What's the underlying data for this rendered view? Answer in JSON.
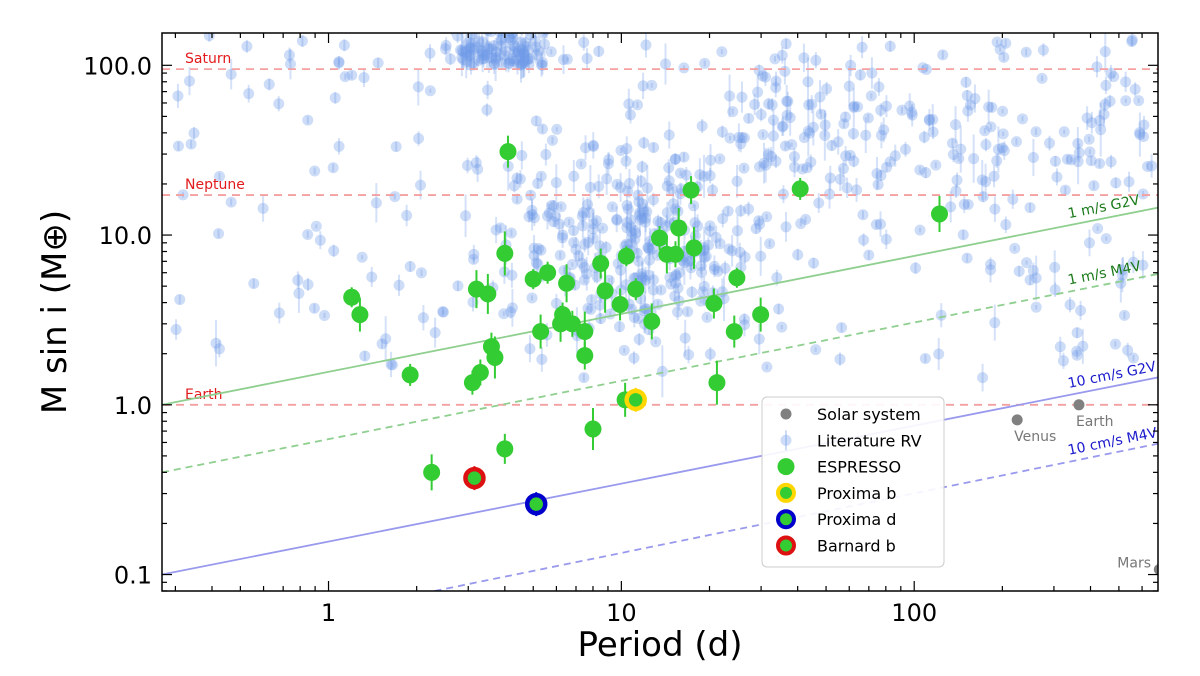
{
  "chart_data": {
    "type": "scatter",
    "xscale": "log",
    "yscale": "log",
    "xlabel": "Period (d)",
    "ylabel": "M sin i (M⊕)",
    "xlim": [
      0.27,
      680
    ],
    "ylim": [
      0.08,
      155
    ],
    "x_ticks": [
      {
        "value": 1,
        "label": "1"
      },
      {
        "value": 10,
        "label": "10"
      },
      {
        "value": 100,
        "label": "100"
      }
    ],
    "y_ticks": [
      {
        "value": 0.1,
        "label": "0.1"
      },
      {
        "value": 1,
        "label": "1.0"
      },
      {
        "value": 10,
        "label": "10.0"
      },
      {
        "value": 100,
        "label": "100.0"
      }
    ],
    "reference_lines": [
      {
        "name": "Saturn",
        "mass": 95
      },
      {
        "name": "Neptune",
        "mass": 17.2
      },
      {
        "name": "Earth",
        "mass": 1.0
      }
    ],
    "detection_limits": [
      {
        "label": "1 m/s G2V",
        "color": "#8fcf8f",
        "dash": false,
        "points": [
          [
            0.27,
            1.0
          ],
          [
            680,
            14.5
          ]
        ],
        "label_period": 300
      },
      {
        "label": "1 m/s M4V",
        "color": "#8fcf8f",
        "dash": true,
        "points": [
          [
            0.27,
            0.4
          ],
          [
            680,
            5.9
          ]
        ],
        "label_period": 300
      },
      {
        "label": "10 cm/s G2V",
        "color": "#9999ee",
        "dash": false,
        "points": [
          [
            0.27,
            0.1
          ],
          [
            680,
            1.45
          ]
        ],
        "label_period": 300
      },
      {
        "label": "10 cm/s M4V",
        "color": "#9999ee",
        "dash": true,
        "points": [
          [
            2.3,
            0.08
          ],
          [
            680,
            0.59
          ]
        ],
        "label_period": 300
      }
    ],
    "literature_rv_cluster": {
      "label": "Literature RV",
      "count": 780,
      "period_range": [
        0.3,
        680
      ],
      "mass_range": [
        0.6,
        150
      ],
      "color": "#6f9ce8"
    },
    "series": [
      {
        "name": "Solar system",
        "color": "#808080",
        "points": [
          {
            "x": 224.7,
            "y": 0.815,
            "label": "Venus"
          },
          {
            "x": 365.25,
            "y": 1.0,
            "label": "Earth"
          },
          {
            "x": 687,
            "y": 0.107,
            "label": "Mars"
          }
        ]
      },
      {
        "name": "ESPRESSO",
        "color": "#33cc33",
        "points": [
          {
            "x": 1.2,
            "y": 4.3
          },
          {
            "x": 1.28,
            "y": 3.4
          },
          {
            "x": 1.9,
            "y": 1.5
          },
          {
            "x": 2.25,
            "y": 0.4
          },
          {
            "x": 3.1,
            "y": 1.35
          },
          {
            "x": 3.2,
            "y": 4.8
          },
          {
            "x": 3.3,
            "y": 1.55
          },
          {
            "x": 3.5,
            "y": 4.5
          },
          {
            "x": 3.6,
            "y": 2.2
          },
          {
            "x": 3.7,
            "y": 1.9
          },
          {
            "x": 4.0,
            "y": 0.55
          },
          {
            "x": 4.0,
            "y": 7.8
          },
          {
            "x": 4.1,
            "y": 31
          },
          {
            "x": 5.0,
            "y": 5.5
          },
          {
            "x": 5.3,
            "y": 2.7
          },
          {
            "x": 5.6,
            "y": 6.0
          },
          {
            "x": 6.2,
            "y": 3.0
          },
          {
            "x": 6.3,
            "y": 3.4
          },
          {
            "x": 6.5,
            "y": 5.2
          },
          {
            "x": 6.8,
            "y": 3.0
          },
          {
            "x": 7.5,
            "y": 2.7
          },
          {
            "x": 7.5,
            "y": 1.95
          },
          {
            "x": 8.0,
            "y": 0.72
          },
          {
            "x": 8.5,
            "y": 6.8
          },
          {
            "x": 8.8,
            "y": 4.7
          },
          {
            "x": 9.9,
            "y": 3.9
          },
          {
            "x": 10.4,
            "y": 7.5
          },
          {
            "x": 10.3,
            "y": 1.07
          },
          {
            "x": 11.2,
            "y": 4.8
          },
          {
            "x": 12.7,
            "y": 3.1
          },
          {
            "x": 13.5,
            "y": 9.6
          },
          {
            "x": 14.3,
            "y": 7.7
          },
          {
            "x": 15.3,
            "y": 7.7
          },
          {
            "x": 15.7,
            "y": 11.0
          },
          {
            "x": 17.3,
            "y": 18.4
          },
          {
            "x": 17.7,
            "y": 8.4
          },
          {
            "x": 20.7,
            "y": 3.95
          },
          {
            "x": 21.2,
            "y": 1.35
          },
          {
            "x": 24.3,
            "y": 2.7
          },
          {
            "x": 24.8,
            "y": 5.6
          },
          {
            "x": 29.9,
            "y": 3.4
          },
          {
            "x": 40.8,
            "y": 18.7
          },
          {
            "x": 122,
            "y": 13.3
          }
        ]
      },
      {
        "name": "Proxima b",
        "color": "#ffd700",
        "points": [
          {
            "x": 11.19,
            "y": 1.07
          }
        ]
      },
      {
        "name": "Proxima d",
        "color": "#0000cc",
        "points": [
          {
            "x": 5.12,
            "y": 0.26
          }
        ]
      },
      {
        "name": "Barnard b",
        "color": "#dd1111",
        "points": [
          {
            "x": 3.15,
            "y": 0.37
          }
        ]
      }
    ],
    "legend": {
      "position": "lower-right",
      "entries": [
        "Solar system",
        "Literature RV",
        "ESPRESSO",
        "Proxima b",
        "Proxima d",
        "Barnard b"
      ]
    }
  }
}
